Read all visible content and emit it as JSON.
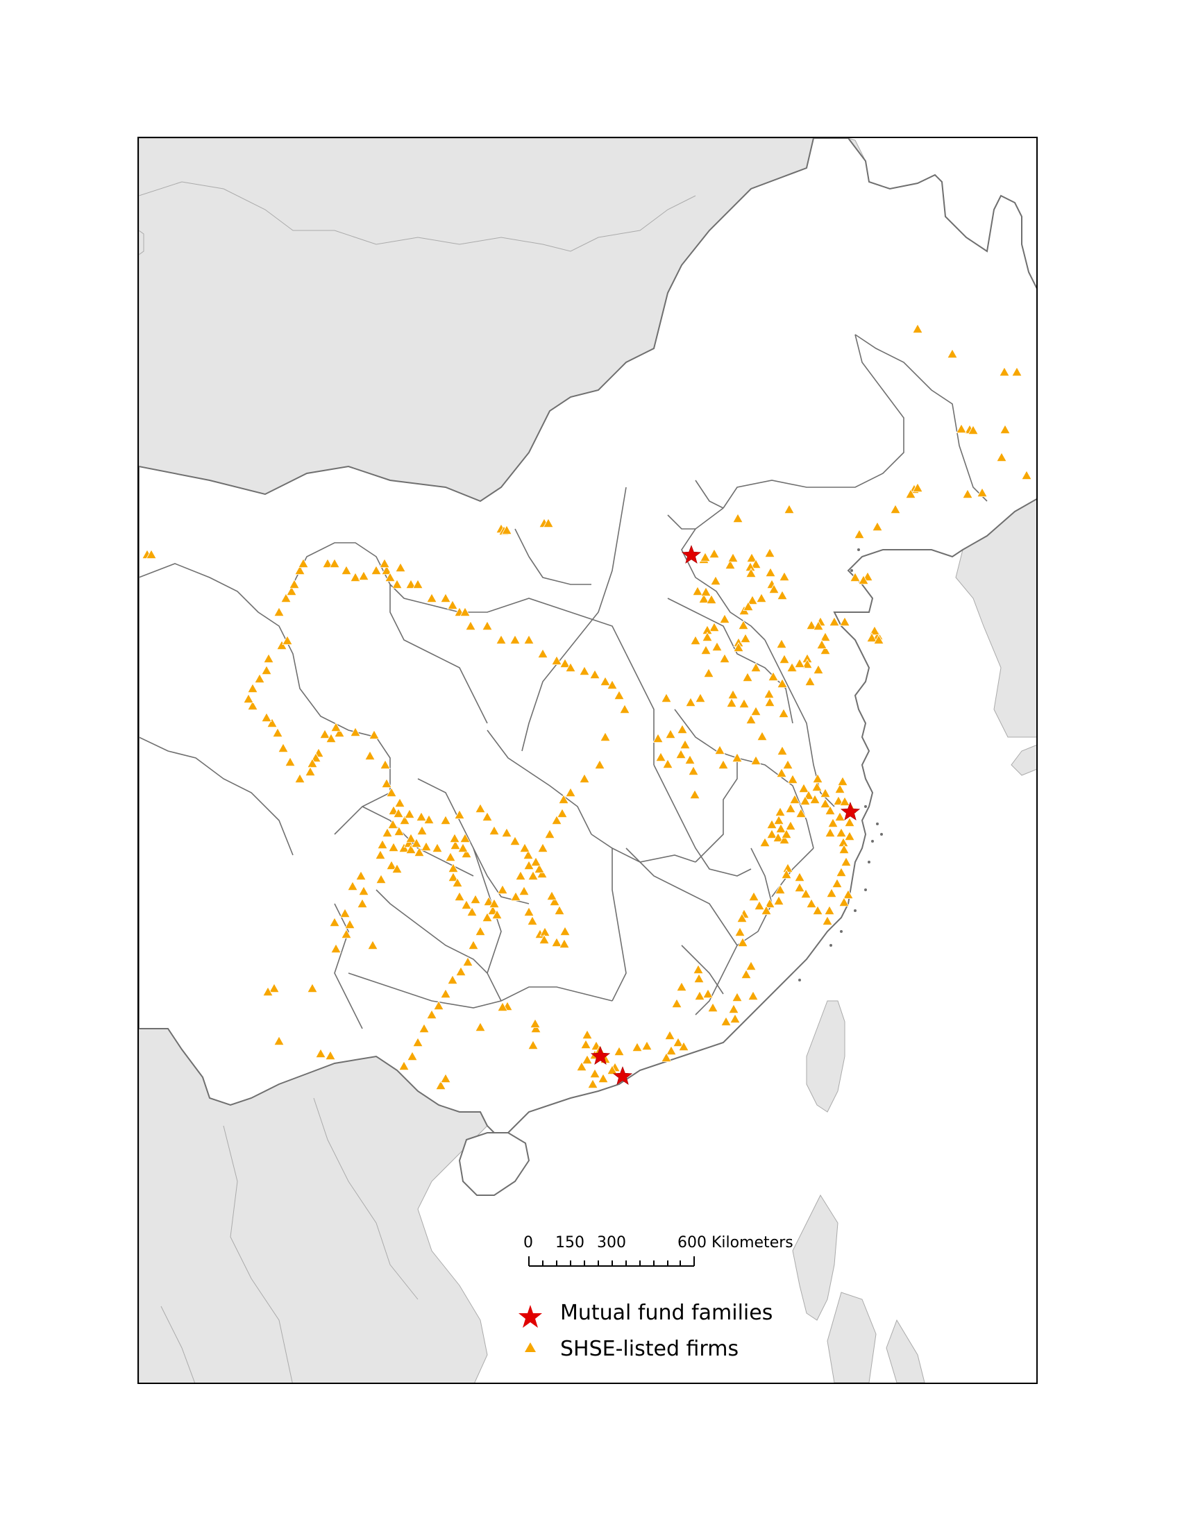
{
  "colors": {
    "background": "#ffffff",
    "neighbor_land": "#e5e5e5",
    "border": "#6f6f6f",
    "frame": "#000000",
    "firm_marker": "#f7a600",
    "firm_marker_outline": "#ffffff",
    "fund_marker": "#e00000"
  },
  "scale_bar": {
    "ticks": [
      "0",
      "150",
      "300",
      "600 Kilometers"
    ]
  },
  "legend": {
    "fund": {
      "label": "Mutual fund families",
      "icon": "red-star-icon"
    },
    "firm": {
      "label": "SHSE-listed firms",
      "icon": "orange-triangle-icon"
    }
  },
  "locations": {
    "fund_families": [
      "Beijing",
      "Shanghai",
      "Guangzhou",
      "Shenzhen"
    ]
  }
}
